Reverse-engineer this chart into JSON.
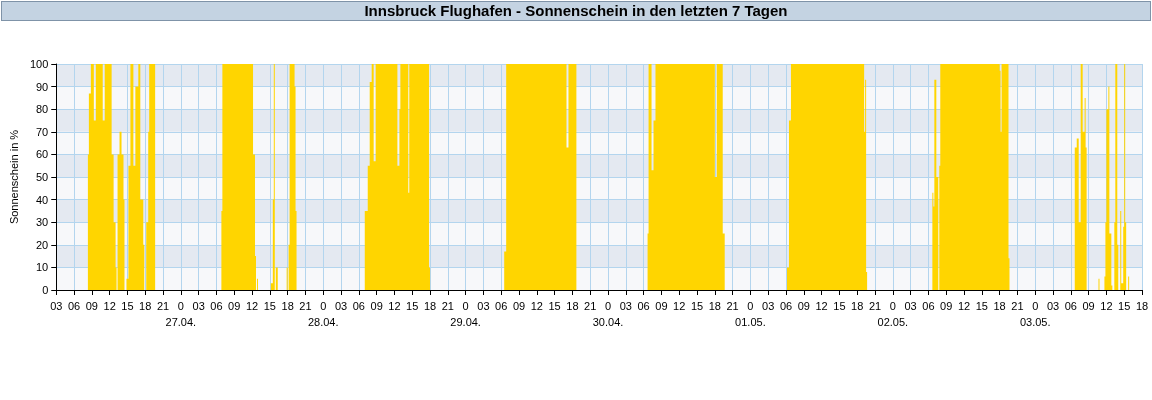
{
  "chart_data": {
    "type": "area",
    "title": "Innsbruck Flughafen - Sonnenschein in den letzten 7 Tagen",
    "ylabel": "Sonnenschein in %",
    "series": [
      {
        "color": "#ffd500",
        "x": [
          "--04-26T03:00",
          "--04-26T08:20",
          "--04-26T08:30",
          "--04-26T08:50",
          "--04-26T09:20",
          "--04-26T09:40",
          "--04-26T10:40",
          "--04-26T10:50",
          "--04-26T11:10",
          "--04-26T12:20",
          "--04-26T12:40",
          "--04-26T13:00",
          "--04-26T13:10",
          "--04-26T13:20",
          "--04-26T13:40",
          "--04-26T14:00",
          "--04-26T14:20",
          "--04-26T14:30",
          "--04-26T14:50",
          "--04-26T15:10",
          "--04-26T15:30",
          "--04-26T16:00",
          "--04-26T16:20",
          "--04-26T16:50",
          "--04-26T17:10",
          "--04-26T17:40",
          "--04-26T17:50",
          "--04-26T18:10",
          "--04-26T18:30",
          "--04-26T18:40",
          "--04-26T19:40",
          "--04-27T06:50",
          "--04-27T07:00",
          "--04-27T12:00",
          "--04-27T12:10",
          "--04-27T12:30",
          "--04-27T12:40",
          "--04-27T12:50",
          "--04-27T13:00",
          "--04-27T15:10",
          "--04-27T15:30",
          "--04-27T15:40",
          "--04-27T15:50",
          "--04-27T16:00",
          "--04-27T16:20",
          "--04-27T16:30",
          "--04-27T17:50",
          "--04-27T18:00",
          "--04-27T18:10",
          "--04-27T18:20",
          "--04-27T19:10",
          "--04-27T19:20",
          "--04-27T19:30",
          "--04-28T07:00",
          "--04-28T07:30",
          "--04-28T07:50",
          "--04-28T08:10",
          "--04-28T08:30",
          "--04-28T08:50",
          "--04-28T12:30",
          "--04-28T12:50",
          "--04-28T13:00",
          "--04-28T14:20",
          "--04-28T14:30",
          "--04-28T17:50",
          "--04-28T18:00",
          "--04-29T06:30",
          "--04-29T06:50",
          "--04-29T16:50",
          "--04-29T17:00",
          "--04-29T17:20",
          "--04-29T18:40",
          "--04-30T06:40",
          "--04-30T06:50",
          "--04-30T07:20",
          "--04-30T07:40",
          "--04-30T08:00",
          "--04-30T17:50",
          "--04-30T18:00",
          "--04-30T18:20",
          "--04-30T19:20",
          "--04-30T19:40",
          "--05-01T06:10",
          "--05-01T06:30",
          "--05-01T06:50",
          "--05-01T19:00",
          "--05-01T19:10",
          "--05-01T19:20",
          "--05-01T19:30",
          "--05-01T19:40",
          "--05-02T06:40",
          "--05-02T06:50",
          "--05-02T07:00",
          "--05-02T07:20",
          "--05-02T07:40",
          "--05-02T07:50",
          "--05-02T08:00",
          "--05-02T18:00",
          "--05-02T18:10",
          "--05-02T18:20",
          "--05-02T19:30",
          "--05-02T19:40",
          "--05-03T06:40",
          "--05-03T07:00",
          "--05-03T07:20",
          "--05-03T07:40",
          "--05-03T08:00",
          "--05-03T08:20",
          "--05-03T08:30",
          "--05-03T08:40",
          "--05-03T10:40",
          "--05-03T10:50",
          "--05-03T11:40",
          "--05-03T11:50",
          "--05-03T12:00",
          "--05-03T12:20",
          "--05-03T12:30",
          "--05-03T12:50",
          "--05-03T13:00",
          "--05-03T13:20",
          "--05-03T13:30",
          "--05-03T13:50",
          "--05-03T14:00",
          "--05-03T14:20",
          "--05-03T14:30",
          "--05-03T14:50",
          "--05-03T15:00",
          "--05-03T15:10",
          "--05-03T15:20",
          "--05-03T15:40",
          "--05-03T15:50",
          "--05-03T18:00"
        ],
        "values": [
          0,
          60,
          87,
          100,
          75,
          100,
          100,
          75,
          100,
          60,
          30,
          10,
          0,
          60,
          70,
          60,
          40,
          0,
          5,
          55,
          100,
          55,
          90,
          100,
          40,
          20,
          0,
          30,
          70,
          100,
          0,
          35,
          100,
          100,
          60,
          15,
          0,
          5,
          0,
          3,
          40,
          100,
          0,
          10,
          0,
          0,
          10,
          0,
          20,
          100,
          90,
          35,
          0,
          35,
          55,
          92,
          100,
          57,
          100,
          55,
          80,
          100,
          43,
          100,
          10,
          0,
          17,
          100,
          100,
          63,
          100,
          0,
          25,
          100,
          53,
          75,
          100,
          100,
          50,
          100,
          25,
          0,
          10,
          75,
          100,
          100,
          70,
          93,
          8,
          0,
          43,
          37,
          93,
          50,
          0,
          55,
          100,
          97,
          70,
          100,
          14,
          0,
          63,
          67,
          30,
          100,
          70,
          85,
          63,
          0,
          5,
          0,
          6,
          30,
          80,
          90,
          25,
          2,
          0,
          30,
          100,
          20,
          0,
          35,
          3,
          28,
          100,
          30,
          0,
          6,
          0,
          0
        ]
      }
    ],
    "xlim": [
      "--04-26T03:00",
      "--05-03T18:00"
    ],
    "xticks": [
      {
        "value": "--04-26T03:00",
        "label": "03"
      },
      {
        "value": "--04-26T06:00",
        "label": "06"
      },
      {
        "value": "--04-26T09:00",
        "label": "09"
      },
      {
        "value": "--04-26T12:00",
        "label": "12"
      },
      {
        "value": "--04-26T15:00",
        "label": "15"
      },
      {
        "value": "--04-26T18:00",
        "label": "18"
      },
      {
        "value": "--04-26T21:00",
        "label": "21"
      },
      {
        "value": "--04-27T00:00",
        "label": "0\n27.04."
      },
      {
        "value": "--04-27T03:00",
        "label": "03"
      },
      {
        "value": "--04-27T06:00",
        "label": "06"
      },
      {
        "value": "--04-27T09:00",
        "label": "09"
      },
      {
        "value": "--04-27T12:00",
        "label": "12"
      },
      {
        "value": "--04-27T15:00",
        "label": "15"
      },
      {
        "value": "--04-27T18:00",
        "label": "18"
      },
      {
        "value": "--04-27T21:00",
        "label": "21"
      },
      {
        "value": "--04-28T00:00",
        "label": "0\n28.04."
      },
      {
        "value": "--04-28T03:00",
        "label": "03"
      },
      {
        "value": "--04-28T06:00",
        "label": "06"
      },
      {
        "value": "--04-28T09:00",
        "label": "09"
      },
      {
        "value": "--04-28T12:00",
        "label": "12"
      },
      {
        "value": "--04-28T15:00",
        "label": "15"
      },
      {
        "value": "--04-28T18:00",
        "label": "18"
      },
      {
        "value": "--04-28T21:00",
        "label": "21"
      },
      {
        "value": "--04-29T00:00",
        "label": "0\n29.04."
      },
      {
        "value": "--04-29T03:00",
        "label": "03"
      },
      {
        "value": "--04-29T06:00",
        "label": "06"
      },
      {
        "value": "--04-29T09:00",
        "label": "09"
      },
      {
        "value": "--04-29T12:00",
        "label": "12"
      },
      {
        "value": "--04-29T15:00",
        "label": "15"
      },
      {
        "value": "--04-29T18:00",
        "label": "18"
      },
      {
        "value": "--04-29T21:00",
        "label": "21"
      },
      {
        "value": "--04-30T00:00",
        "label": "0\n30.04."
      },
      {
        "value": "--04-30T03:00",
        "label": "03"
      },
      {
        "value": "--04-30T06:00",
        "label": "06"
      },
      {
        "value": "--04-30T09:00",
        "label": "09"
      },
      {
        "value": "--04-30T12:00",
        "label": "12"
      },
      {
        "value": "--04-30T15:00",
        "label": "15"
      },
      {
        "value": "--04-30T18:00",
        "label": "18"
      },
      {
        "value": "--04-30T21:00",
        "label": "21"
      },
      {
        "value": "--05-01T00:00",
        "label": "0\n01.05."
      },
      {
        "value": "--05-01T03:00",
        "label": "03"
      },
      {
        "value": "--05-01T06:00",
        "label": "06"
      },
      {
        "value": "--05-01T09:00",
        "label": "09"
      },
      {
        "value": "--05-01T12:00",
        "label": "12"
      },
      {
        "value": "--05-01T15:00",
        "label": "15"
      },
      {
        "value": "--05-01T18:00",
        "label": "18"
      },
      {
        "value": "--05-01T21:00",
        "label": "21"
      },
      {
        "value": "--05-02T00:00",
        "label": "0\n02.05."
      },
      {
        "value": "--05-02T03:00",
        "label": "03"
      },
      {
        "value": "--05-02T06:00",
        "label": "06"
      },
      {
        "value": "--05-02T09:00",
        "label": "09"
      },
      {
        "value": "--05-02T12:00",
        "label": "12"
      },
      {
        "value": "--05-02T15:00",
        "label": "15"
      },
      {
        "value": "--05-02T18:00",
        "label": "18"
      },
      {
        "value": "--05-02T21:00",
        "label": "21"
      },
      {
        "value": "--05-03T00:00",
        "label": "0\n03.05."
      },
      {
        "value": "--05-03T03:00",
        "label": "03"
      },
      {
        "value": "--05-03T06:00",
        "label": "06"
      },
      {
        "value": "--05-03T09:00",
        "label": "09"
      },
      {
        "value": "--05-03T12:00",
        "label": "12"
      },
      {
        "value": "--05-03T15:00",
        "label": "15"
      },
      {
        "value": "--05-03T18:00",
        "label": "18"
      }
    ],
    "ylim": [
      0,
      100
    ],
    "yticks": [
      0,
      10,
      20,
      30,
      40,
      50,
      60,
      70,
      80,
      90,
      100
    ],
    "grid": true
  }
}
